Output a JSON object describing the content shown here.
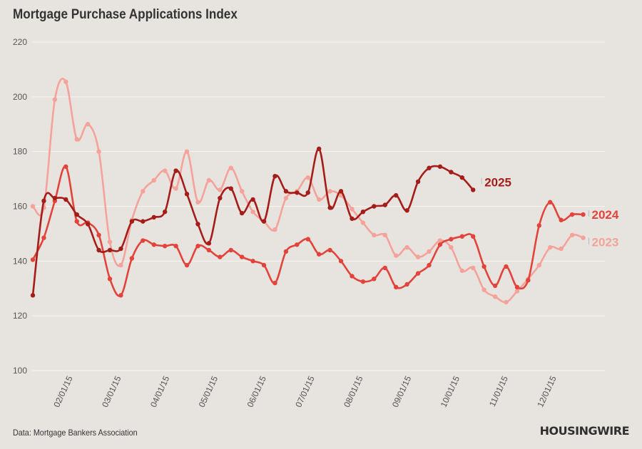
{
  "title": "Mortgage Purchase Applications Index",
  "source": "Data: Mortgage Bankers Association",
  "brand": "HOUSINGWIRE",
  "chart_data": {
    "type": "line",
    "title": "Mortgage Purchase Applications Index",
    "xlabel": "",
    "ylabel": "",
    "ylim": [
      100,
      220
    ],
    "yticks": [
      100,
      120,
      140,
      160,
      180,
      200,
      220
    ],
    "grid": true,
    "legend": "end-of-line labels",
    "x_ticks": [
      "02/01/15",
      "03/01/15",
      "04/01/15",
      "05/01/15",
      "06/01/15",
      "07/01/15",
      "08/01/15",
      "09/01/15",
      "10/01/15",
      "11/01/15",
      "12/01/15"
    ],
    "x_week_start": 1,
    "x_week_step": 1,
    "series": [
      {
        "name": "2023",
        "color": "#f4a29a",
        "values": [
          160,
          159.5,
          199,
          205.5,
          184.5,
          190,
          180,
          147,
          138.5,
          155,
          165.5,
          169.5,
          173,
          166.5,
          180,
          161.5,
          169.5,
          166,
          174,
          165.5,
          158,
          154.5,
          151.5,
          163,
          165.5,
          170.5,
          162.5,
          165.5,
          164,
          159,
          154,
          149.5,
          149.5,
          142,
          145,
          141.5,
          143.5,
          147.5,
          145,
          136.5,
          137.5,
          129.5,
          127,
          125,
          129,
          133.5,
          138.5,
          145,
          144.5,
          149.5,
          148.5
        ]
      },
      {
        "name": "2024",
        "color": "#e2433a",
        "values": [
          140.5,
          148.5,
          162,
          174.5,
          154.5,
          154,
          149.5,
          133.5,
          127.5,
          141,
          147.5,
          146,
          145.5,
          145.5,
          138.5,
          145.5,
          144,
          141.5,
          144,
          141.5,
          140,
          138.5,
          132,
          143.5,
          146,
          148,
          142.5,
          144,
          140,
          134.5,
          132.5,
          133.5,
          137.5,
          130.5,
          131.5,
          135.5,
          138.5,
          146,
          148,
          149,
          149,
          138,
          131,
          138,
          130.5,
          133,
          153,
          161.5,
          155,
          157,
          157
        ]
      },
      {
        "name": "2025",
        "color": "#a51d19",
        "values": [
          127.5,
          162,
          163,
          162.5,
          157,
          153.5,
          144,
          144,
          144.5,
          154.5,
          154.5,
          156,
          158,
          173,
          164.5,
          153.5,
          146.5,
          163,
          166.5,
          157.5,
          162.5,
          154.5,
          171,
          165.5,
          165,
          165,
          181,
          159.5,
          165.5,
          155.5,
          158,
          160,
          160.5,
          164,
          158.5,
          169,
          174,
          174.5,
          172.5,
          170.5,
          166
        ]
      }
    ]
  }
}
